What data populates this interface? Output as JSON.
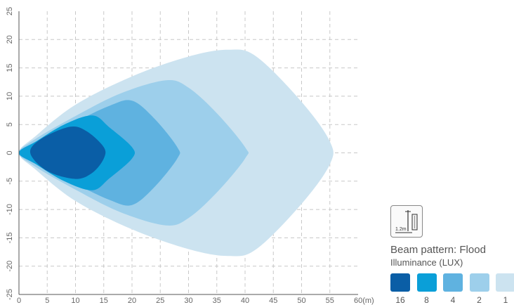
{
  "chart_data": {
    "type": "area",
    "xlabel": "",
    "x_unit": "(m)",
    "xlim": [
      0,
      60
    ],
    "ylim": [
      -25,
      25
    ],
    "x_ticks": [
      0,
      5,
      10,
      15,
      20,
      25,
      30,
      35,
      40,
      45,
      50,
      55,
      60
    ],
    "y_ticks": [
      25,
      20,
      15,
      10,
      5,
      0,
      -5,
      -10,
      -15,
      -20,
      -25
    ],
    "grid": true,
    "series": [
      {
        "name": "1",
        "color": "#cce3f0",
        "points": [
          [
            0,
            0
          ],
          [
            3,
            3
          ],
          [
            10,
            8.5
          ],
          [
            20,
            13.5
          ],
          [
            30,
            17
          ],
          [
            37,
            18.2
          ],
          [
            42,
            17
          ],
          [
            50,
            9
          ],
          [
            55,
            2
          ],
          [
            55,
            -2
          ],
          [
            50,
            -9
          ],
          [
            42,
            -17
          ],
          [
            37,
            -18.2
          ],
          [
            30,
            -17
          ],
          [
            20,
            -13.5
          ],
          [
            10,
            -8.5
          ],
          [
            3,
            -3
          ]
        ]
      },
      {
        "name": "2",
        "color": "#9dcfeb",
        "points": [
          [
            0,
            0
          ],
          [
            3,
            2.5
          ],
          [
            10,
            6.5
          ],
          [
            18,
            10.5
          ],
          [
            26,
            12.8
          ],
          [
            30,
            11.5
          ],
          [
            35,
            7
          ],
          [
            40,
            1
          ],
          [
            40,
            -1
          ],
          [
            35,
            -7
          ],
          [
            30,
            -11.5
          ],
          [
            26,
            -12.8
          ],
          [
            18,
            -10.5
          ],
          [
            10,
            -6.5
          ],
          [
            3,
            -2.5
          ]
        ]
      },
      {
        "name": "4",
        "color": "#5fb2e0",
        "points": [
          [
            0,
            0
          ],
          [
            3,
            2
          ],
          [
            10,
            5.5
          ],
          [
            16,
            8.3
          ],
          [
            20,
            9.2
          ],
          [
            24,
            6
          ],
          [
            28,
            1
          ],
          [
            28,
            -1
          ],
          [
            24,
            -6
          ],
          [
            20,
            -9.2
          ],
          [
            16,
            -8.3
          ],
          [
            10,
            -5.5
          ],
          [
            3,
            -2
          ]
        ]
      },
      {
        "name": "8",
        "color": "#0a9fd8",
        "points": [
          [
            0,
            0
          ],
          [
            3,
            2
          ],
          [
            8,
            5
          ],
          [
            13,
            6.6
          ],
          [
            16,
            4.5
          ],
          [
            20,
            1
          ],
          [
            20,
            -1
          ],
          [
            16,
            -4.5
          ],
          [
            13,
            -6.6
          ],
          [
            8,
            -5
          ],
          [
            3,
            -2
          ]
        ]
      },
      {
        "name": "16",
        "color": "#0a5ea6",
        "points": [
          [
            2,
            0
          ],
          [
            4,
            2.5
          ],
          [
            9,
            4.6
          ],
          [
            12,
            3.8
          ],
          [
            15,
            1
          ],
          [
            15,
            -1
          ],
          [
            13,
            -3.5
          ],
          [
            10,
            -4.6
          ],
          [
            5,
            -3.2
          ]
        ]
      }
    ]
  },
  "legend": {
    "pattern_title": "Beam pattern: Flood",
    "illuminance_title": "Illuminance (LUX)",
    "icon": "mounting-height-icon",
    "icon_label": "1.2m",
    "items": [
      {
        "label": "16",
        "color": "#0a5ea6"
      },
      {
        "label": "8",
        "color": "#0a9fd8"
      },
      {
        "label": "4",
        "color": "#5fb2e0"
      },
      {
        "label": "2",
        "color": "#9dcfeb"
      },
      {
        "label": "1",
        "color": "#cce3f0"
      }
    ]
  }
}
